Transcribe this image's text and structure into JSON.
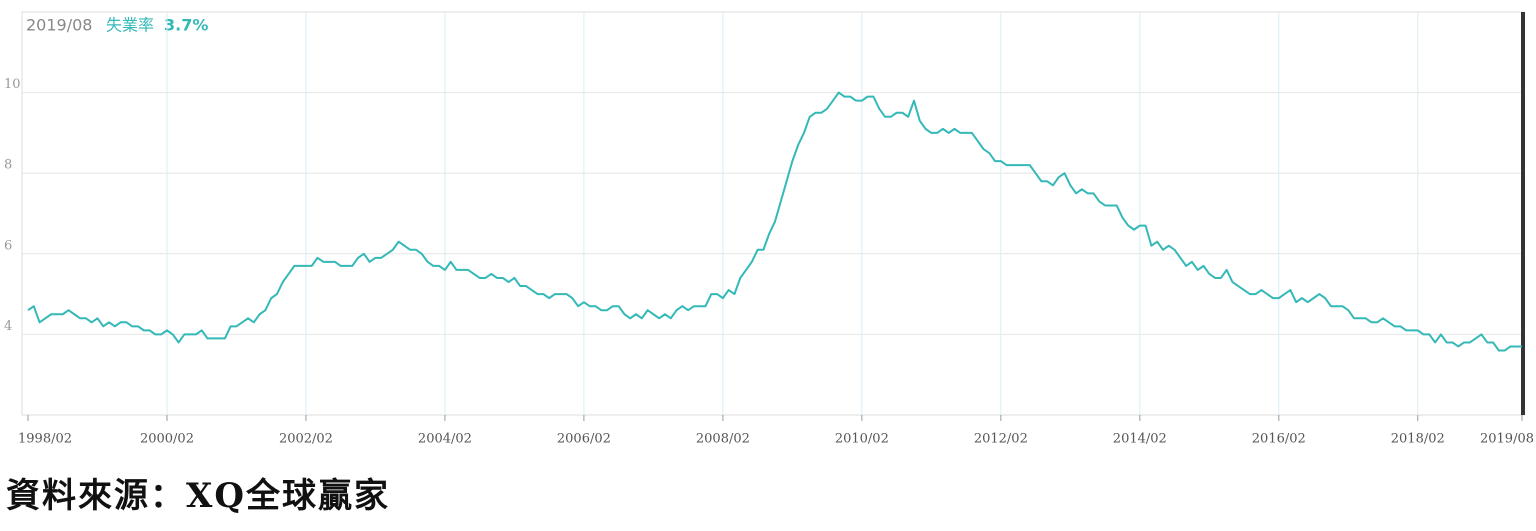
{
  "header": {
    "date": "2019/08",
    "label": "失業率",
    "value": "3.7%"
  },
  "source": "資料來源：XQ全球贏家",
  "chart_data": {
    "type": "line",
    "color": "#35b8b8",
    "grid": true,
    "ylim": [
      2,
      12
    ],
    "yticks": [
      4,
      6,
      8,
      10
    ],
    "xticks": [
      "1998/02",
      "2000/02",
      "2002/02",
      "2004/02",
      "2006/02",
      "2008/02",
      "2010/02",
      "2012/02",
      "2014/02",
      "2016/02",
      "2018/02",
      "2019/08"
    ],
    "categories": [
      "1998/02",
      "1998/03",
      "1998/04",
      "1998/05",
      "1998/06",
      "1998/07",
      "1998/08",
      "1998/09",
      "1998/10",
      "1998/11",
      "1998/12",
      "1999/01",
      "1999/02",
      "1999/03",
      "1999/04",
      "1999/05",
      "1999/06",
      "1999/07",
      "1999/08",
      "1999/09",
      "1999/10",
      "1999/11",
      "1999/12",
      "2000/01",
      "2000/02",
      "2000/03",
      "2000/04",
      "2000/05",
      "2000/06",
      "2000/07",
      "2000/08",
      "2000/09",
      "2000/10",
      "2000/11",
      "2000/12",
      "2001/01",
      "2001/02",
      "2001/03",
      "2001/04",
      "2001/05",
      "2001/06",
      "2001/07",
      "2001/08",
      "2001/09",
      "2001/10",
      "2001/11",
      "2001/12",
      "2002/01",
      "2002/02",
      "2002/03",
      "2002/04",
      "2002/05",
      "2002/06",
      "2002/07",
      "2002/08",
      "2002/09",
      "2002/10",
      "2002/11",
      "2002/12",
      "2003/01",
      "2003/02",
      "2003/03",
      "2003/04",
      "2003/05",
      "2003/06",
      "2003/07",
      "2003/08",
      "2003/09",
      "2003/10",
      "2003/11",
      "2003/12",
      "2004/01",
      "2004/02",
      "2004/03",
      "2004/04",
      "2004/05",
      "2004/06",
      "2004/07",
      "2004/08",
      "2004/09",
      "2004/10",
      "2004/11",
      "2004/12",
      "2005/01",
      "2005/02",
      "2005/03",
      "2005/04",
      "2005/05",
      "2005/06",
      "2005/07",
      "2005/08",
      "2005/09",
      "2005/10",
      "2005/11",
      "2005/12",
      "2006/01",
      "2006/02",
      "2006/03",
      "2006/04",
      "2006/05",
      "2006/06",
      "2006/07",
      "2006/08",
      "2006/09",
      "2006/10",
      "2006/11",
      "2006/12",
      "2007/01",
      "2007/02",
      "2007/03",
      "2007/04",
      "2007/05",
      "2007/06",
      "2007/07",
      "2007/08",
      "2007/09",
      "2007/10",
      "2007/11",
      "2007/12",
      "2008/01",
      "2008/02",
      "2008/03",
      "2008/04",
      "2008/05",
      "2008/06",
      "2008/07",
      "2008/08",
      "2008/09",
      "2008/10",
      "2008/11",
      "2008/12",
      "2009/01",
      "2009/02",
      "2009/03",
      "2009/04",
      "2009/05",
      "2009/06",
      "2009/07",
      "2009/08",
      "2009/09",
      "2009/10",
      "2009/11",
      "2009/12",
      "2010/01",
      "2010/02",
      "2010/03",
      "2010/04",
      "2010/05",
      "2010/06",
      "2010/07",
      "2010/08",
      "2010/09",
      "2010/10",
      "2010/11",
      "2010/12",
      "2011/01",
      "2011/02",
      "2011/03",
      "2011/04",
      "2011/05",
      "2011/06",
      "2011/07",
      "2011/08",
      "2011/09",
      "2011/10",
      "2011/11",
      "2011/12",
      "2012/01",
      "2012/02",
      "2012/03",
      "2012/04",
      "2012/05",
      "2012/06",
      "2012/07",
      "2012/08",
      "2012/09",
      "2012/10",
      "2012/11",
      "2012/12",
      "2013/01",
      "2013/02",
      "2013/03",
      "2013/04",
      "2013/05",
      "2013/06",
      "2013/07",
      "2013/08",
      "2013/09",
      "2013/10",
      "2013/11",
      "2013/12",
      "2014/01",
      "2014/02",
      "2014/03",
      "2014/04",
      "2014/05",
      "2014/06",
      "2014/07",
      "2014/08",
      "2014/09",
      "2014/10",
      "2014/11",
      "2014/12",
      "2015/01",
      "2015/02",
      "2015/03",
      "2015/04",
      "2015/05",
      "2015/06",
      "2015/07",
      "2015/08",
      "2015/09",
      "2015/10",
      "2015/11",
      "2015/12",
      "2016/01",
      "2016/02",
      "2016/03",
      "2016/04",
      "2016/05",
      "2016/06",
      "2016/07",
      "2016/08",
      "2016/09",
      "2016/10",
      "2016/11",
      "2016/12",
      "2017/01",
      "2017/02",
      "2017/03",
      "2017/04",
      "2017/05",
      "2017/06",
      "2017/07",
      "2017/08",
      "2017/09",
      "2017/10",
      "2017/11",
      "2017/12",
      "2018/01",
      "2018/02",
      "2018/03",
      "2018/04",
      "2018/05",
      "2018/06",
      "2018/07",
      "2018/08",
      "2018/09",
      "2018/10",
      "2018/11",
      "2018/12",
      "2019/01",
      "2019/02",
      "2019/03",
      "2019/04",
      "2019/05",
      "2019/06",
      "2019/07",
      "2019/08"
    ],
    "values": [
      4.6,
      4.7,
      4.3,
      4.4,
      4.5,
      4.5,
      4.5,
      4.6,
      4.5,
      4.4,
      4.4,
      4.3,
      4.4,
      4.2,
      4.3,
      4.2,
      4.3,
      4.3,
      4.2,
      4.2,
      4.1,
      4.1,
      4.0,
      4.0,
      4.1,
      4.0,
      3.8,
      4.0,
      4.0,
      4.0,
      4.1,
      3.9,
      3.9,
      3.9,
      3.9,
      4.2,
      4.2,
      4.3,
      4.4,
      4.3,
      4.5,
      4.6,
      4.9,
      5.0,
      5.3,
      5.5,
      5.7,
      5.7,
      5.7,
      5.7,
      5.9,
      5.8,
      5.8,
      5.8,
      5.7,
      5.7,
      5.7,
      5.9,
      6.0,
      5.8,
      5.9,
      5.9,
      6.0,
      6.1,
      6.3,
      6.2,
      6.1,
      6.1,
      6.0,
      5.8,
      5.7,
      5.7,
      5.6,
      5.8,
      5.6,
      5.6,
      5.6,
      5.5,
      5.4,
      5.4,
      5.5,
      5.4,
      5.4,
      5.3,
      5.4,
      5.2,
      5.2,
      5.1,
      5.0,
      5.0,
      4.9,
      5.0,
      5.0,
      5.0,
      4.9,
      4.7,
      4.8,
      4.7,
      4.7,
      4.6,
      4.6,
      4.7,
      4.7,
      4.5,
      4.4,
      4.5,
      4.4,
      4.6,
      4.5,
      4.4,
      4.5,
      4.4,
      4.6,
      4.7,
      4.6,
      4.7,
      4.7,
      4.7,
      5.0,
      5.0,
      4.9,
      5.1,
      5.0,
      5.4,
      5.6,
      5.8,
      6.1,
      6.1,
      6.5,
      6.8,
      7.3,
      7.8,
      8.3,
      8.7,
      9.0,
      9.4,
      9.5,
      9.5,
      9.6,
      9.8,
      10.0,
      9.9,
      9.9,
      9.8,
      9.8,
      9.9,
      9.9,
      9.6,
      9.4,
      9.4,
      9.5,
      9.5,
      9.4,
      9.8,
      9.3,
      9.1,
      9.0,
      9.0,
      9.1,
      9.0,
      9.1,
      9.0,
      9.0,
      9.0,
      8.8,
      8.6,
      8.5,
      8.3,
      8.3,
      8.2,
      8.2,
      8.2,
      8.2,
      8.2,
      8.0,
      7.8,
      7.8,
      7.7,
      7.9,
      8.0,
      7.7,
      7.5,
      7.6,
      7.5,
      7.5,
      7.3,
      7.2,
      7.2,
      7.2,
      6.9,
      6.7,
      6.6,
      6.7,
      6.7,
      6.2,
      6.3,
      6.1,
      6.2,
      6.1,
      5.9,
      5.7,
      5.8,
      5.6,
      5.7,
      5.5,
      5.4,
      5.4,
      5.6,
      5.3,
      5.2,
      5.1,
      5.0,
      5.0,
      5.1,
      5.0,
      4.9,
      4.9,
      5.0,
      5.1,
      4.8,
      4.9,
      4.8,
      4.9,
      5.0,
      4.9,
      4.7,
      4.7,
      4.7,
      4.6,
      4.4,
      4.4,
      4.4,
      4.3,
      4.3,
      4.4,
      4.3,
      4.2,
      4.2,
      4.1,
      4.1,
      4.1,
      4.0,
      4.0,
      3.8,
      4.0,
      3.8,
      3.8,
      3.7,
      3.8,
      3.8,
      3.9,
      4.0,
      3.8,
      3.8,
      3.6,
      3.6,
      3.7,
      3.7,
      3.7
    ]
  }
}
